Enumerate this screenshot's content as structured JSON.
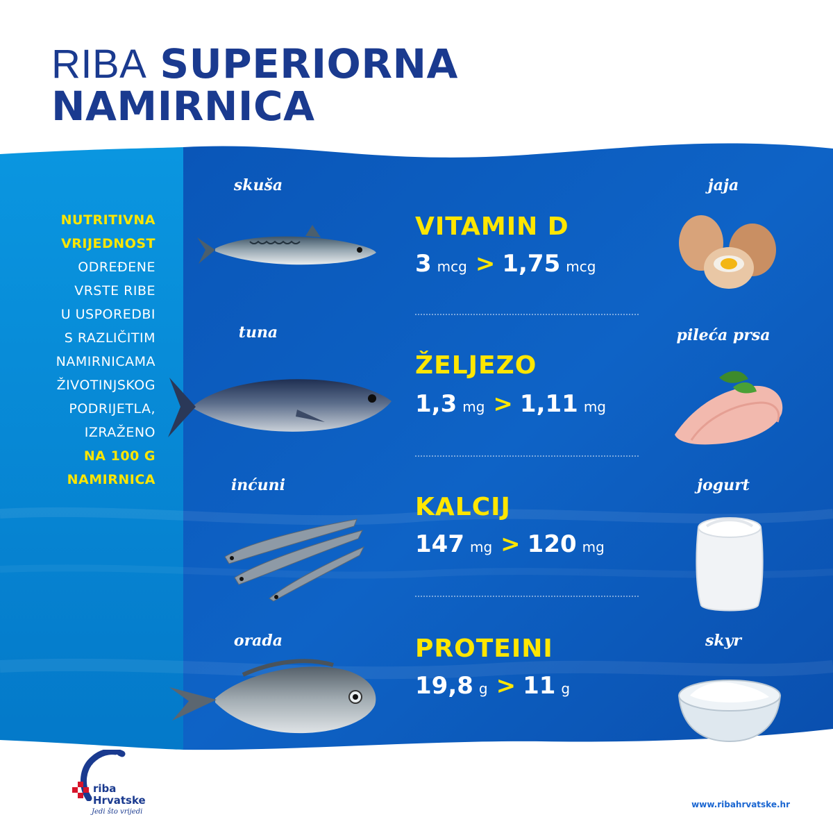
{
  "title": {
    "light": "RIBA",
    "bold_line1": "SUPERIORNA",
    "bold_line2": "NAMIRNICA"
  },
  "intro": {
    "lines": [
      {
        "text": "NUTRITIVNA",
        "highlight": true
      },
      {
        "text": "VRIJEDNOST",
        "highlight": true
      },
      {
        "text": "ODREĐENE",
        "highlight": false
      },
      {
        "text": "VRSTE RIBE",
        "highlight": false
      },
      {
        "text": "U USPOREDBI",
        "highlight": false
      },
      {
        "text": "S RAZLIČITIM",
        "highlight": false
      },
      {
        "text": "NAMIRNICAMA",
        "highlight": false
      },
      {
        "text": "ŽIVOTINJSKOG",
        "highlight": false
      },
      {
        "text": "PODRIJETLA,",
        "highlight": false
      },
      {
        "text": "IZRAŽENO",
        "highlight": false
      },
      {
        "text": "NA 100 G",
        "highlight": true
      },
      {
        "text": "NAMIRNICA",
        "highlight": true
      }
    ]
  },
  "rows": [
    {
      "fish": "skuša",
      "food": "jaja",
      "nutrient": "VITAMIN D",
      "fish_value": "3",
      "fish_unit": "mcg",
      "gt": ">",
      "food_value": "1,75",
      "food_unit": "mcg"
    },
    {
      "fish": "tuna",
      "food": "pileća prsa",
      "nutrient": "ŽELJEZO",
      "fish_value": "1,3",
      "fish_unit": "mg",
      "gt": ">",
      "food_value": "1,11",
      "food_unit": "mg"
    },
    {
      "fish": "inćuni",
      "food": "jogurt",
      "nutrient": "KALCIJ",
      "fish_value": "147",
      "fish_unit": "mg",
      "gt": ">",
      "food_value": "120",
      "food_unit": "mg"
    },
    {
      "fish": "orada",
      "food": "skyr",
      "nutrient": "PROTEINI",
      "fish_value": "19,8",
      "fish_unit": "g",
      "gt": ">",
      "food_value": "11",
      "food_unit": "g"
    }
  ],
  "logo": {
    "line1": "riba",
    "line2": "Hrvatske",
    "tagline": "Jedi što vrijedi"
  },
  "url": "www.ribahrvatske.hr",
  "colors": {
    "navy": "#1a3a8f",
    "yellow": "#ffe600",
    "left_panel": "#0a8ad6",
    "main_panel": "#0c5cc0"
  }
}
